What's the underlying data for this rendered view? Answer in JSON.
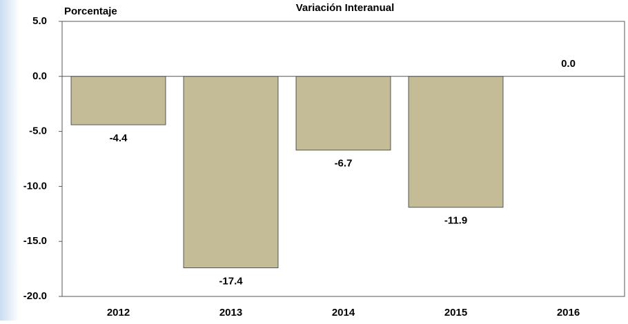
{
  "chart_data": {
    "type": "bar",
    "title": "Variación Interanual",
    "ylabel": "Porcentaje",
    "categories": [
      "2012",
      "2013",
      "2014",
      "2015",
      "2016"
    ],
    "values": [
      -4.4,
      -17.4,
      -6.7,
      -11.9,
      0.0
    ],
    "value_labels": [
      "-4.4",
      "-17.4",
      "-6.7",
      "-11.9",
      "0.0"
    ],
    "color": "#c4bc96",
    "ylim": [
      -20,
      5
    ],
    "yticks": [
      {
        "value": 5,
        "label": "5.0"
      },
      {
        "value": 0,
        "label": "0.0"
      },
      {
        "value": -5,
        "label": "-5.0"
      },
      {
        "value": -10,
        "label": "-10.0"
      },
      {
        "value": -15,
        "label": "-15.0"
      },
      {
        "value": -20,
        "label": "-20.0"
      }
    ],
    "grid": false
  }
}
